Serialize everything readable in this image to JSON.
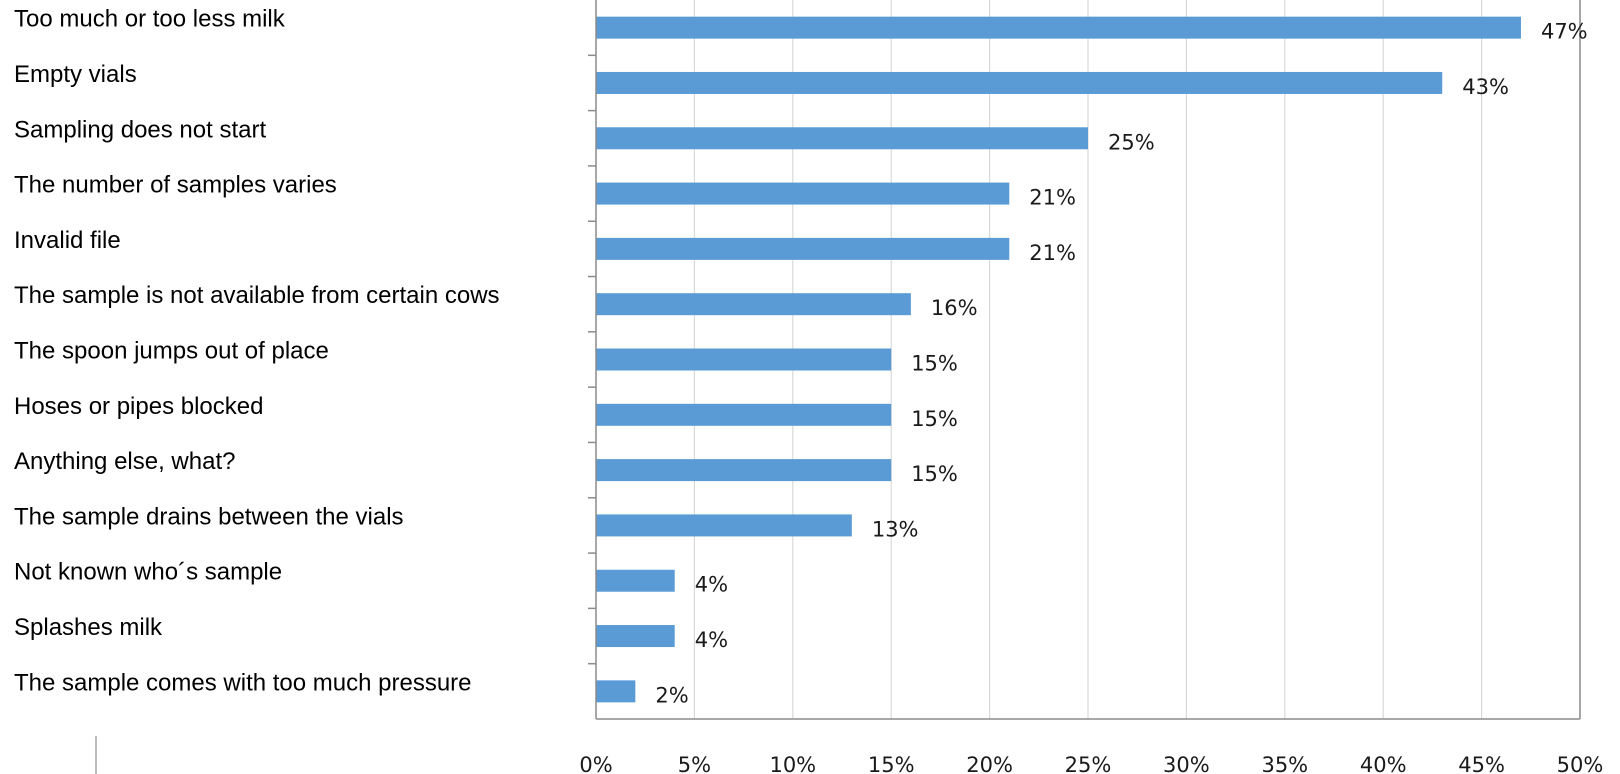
{
  "chart_data": {
    "type": "bar",
    "orientation": "horizontal",
    "categories": [
      "Too much or too less milk",
      "Empty vials",
      "Sampling does not start",
      "The number of samples varies",
      "Invalid file",
      "The sample is not available from certain cows",
      "The spoon jumps out of place",
      "Hoses or pipes blocked",
      "Anything else, what?",
      "The sample drains between the vials",
      "Not known who´s sample",
      "Splashes milk",
      "The sample comes with too much pressure"
    ],
    "values": [
      47,
      43,
      25,
      21,
      21,
      16,
      15,
      15,
      15,
      13,
      4,
      4,
      2
    ],
    "value_labels": [
      "47%",
      "43%",
      "25%",
      "21%",
      "21%",
      "16%",
      "15%",
      "15%",
      "15%",
      "13%",
      "4%",
      "4%",
      "2%"
    ],
    "xlim": [
      0,
      50
    ],
    "x_ticks": [
      0,
      5,
      10,
      15,
      20,
      25,
      30,
      35,
      40,
      45,
      50
    ],
    "x_tick_labels": [
      "0%",
      "5%",
      "10%",
      "15%",
      "20%",
      "25%",
      "30%",
      "35%",
      "40%",
      "45%",
      "50%"
    ],
    "grid": "vertical",
    "bar_color": "#5B9BD5",
    "title": "",
    "xlabel": "",
    "ylabel": ""
  }
}
